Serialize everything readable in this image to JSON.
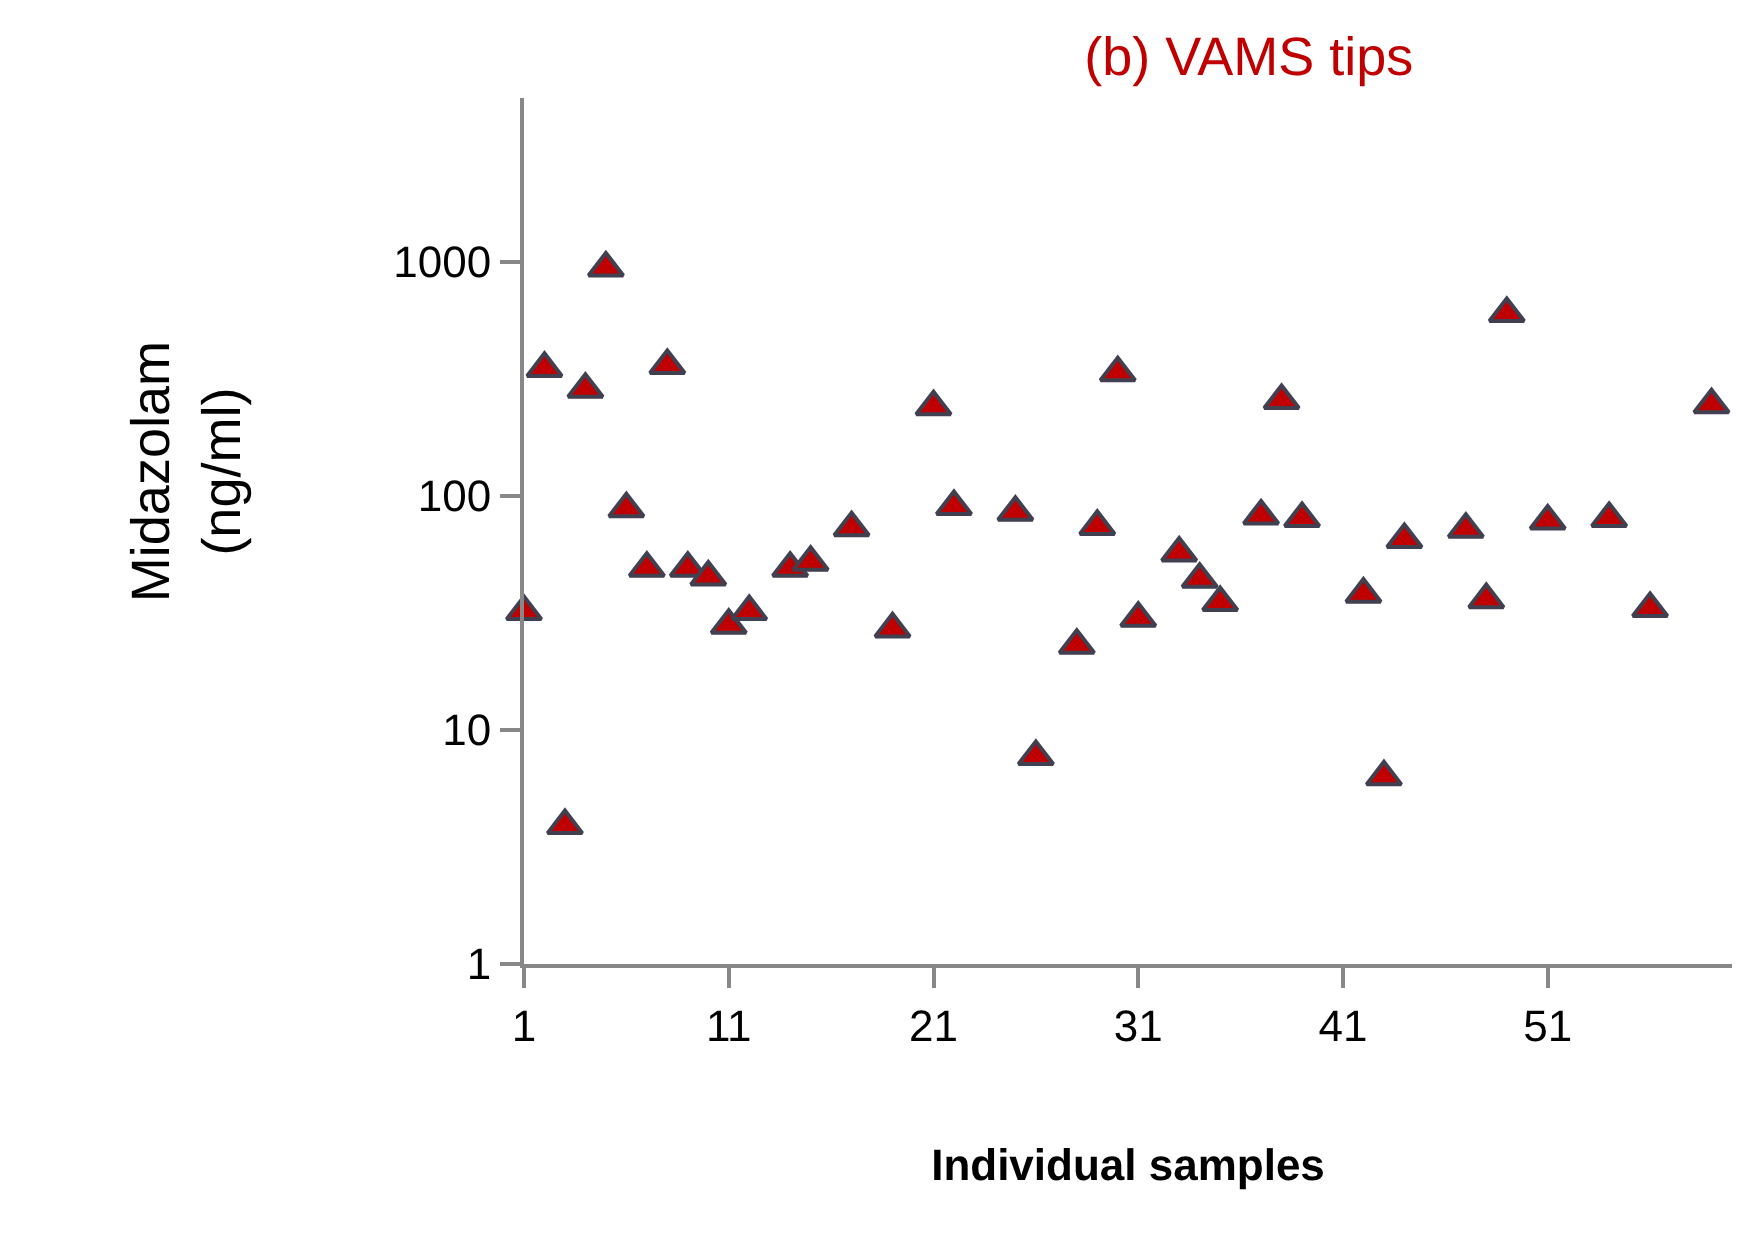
{
  "chart_data": {
    "type": "scatter",
    "title": "(b) VAMS tips",
    "xlabel": "Individual samples",
    "ylabel": "Midazolam (ng/ml)",
    "x": [
      1,
      2,
      3,
      4,
      5,
      6,
      7,
      8,
      9,
      10,
      11,
      12,
      14,
      15,
      17,
      19,
      21,
      22,
      25,
      26,
      28,
      29,
      30,
      31,
      33,
      34,
      35,
      37,
      38,
      39,
      42,
      43,
      44,
      47,
      48,
      49,
      51,
      54,
      56,
      59
    ],
    "series": [
      {
        "color": "#c00000",
        "values": [
          32,
          350,
          3.9,
          285,
          940,
          88,
          49,
          360,
          49,
          45,
          28,
          32,
          49,
          52,
          73,
          27,
          240,
          90,
          85,
          7.7,
          23,
          74,
          335,
          30,
          57,
          44,
          35,
          82,
          255,
          80,
          38,
          6.3,
          65,
          72,
          36,
          600,
          78,
          80,
          33,
          245
        ]
      }
    ],
    "xlim": [
      1,
      60
    ],
    "xticks": [
      1,
      11,
      21,
      31,
      41,
      51
    ],
    "ylim": [
      1,
      5000
    ],
    "yticks": [
      1,
      10,
      100,
      1000
    ],
    "log": "y",
    "grid": false,
    "marker": "triangle"
  }
}
